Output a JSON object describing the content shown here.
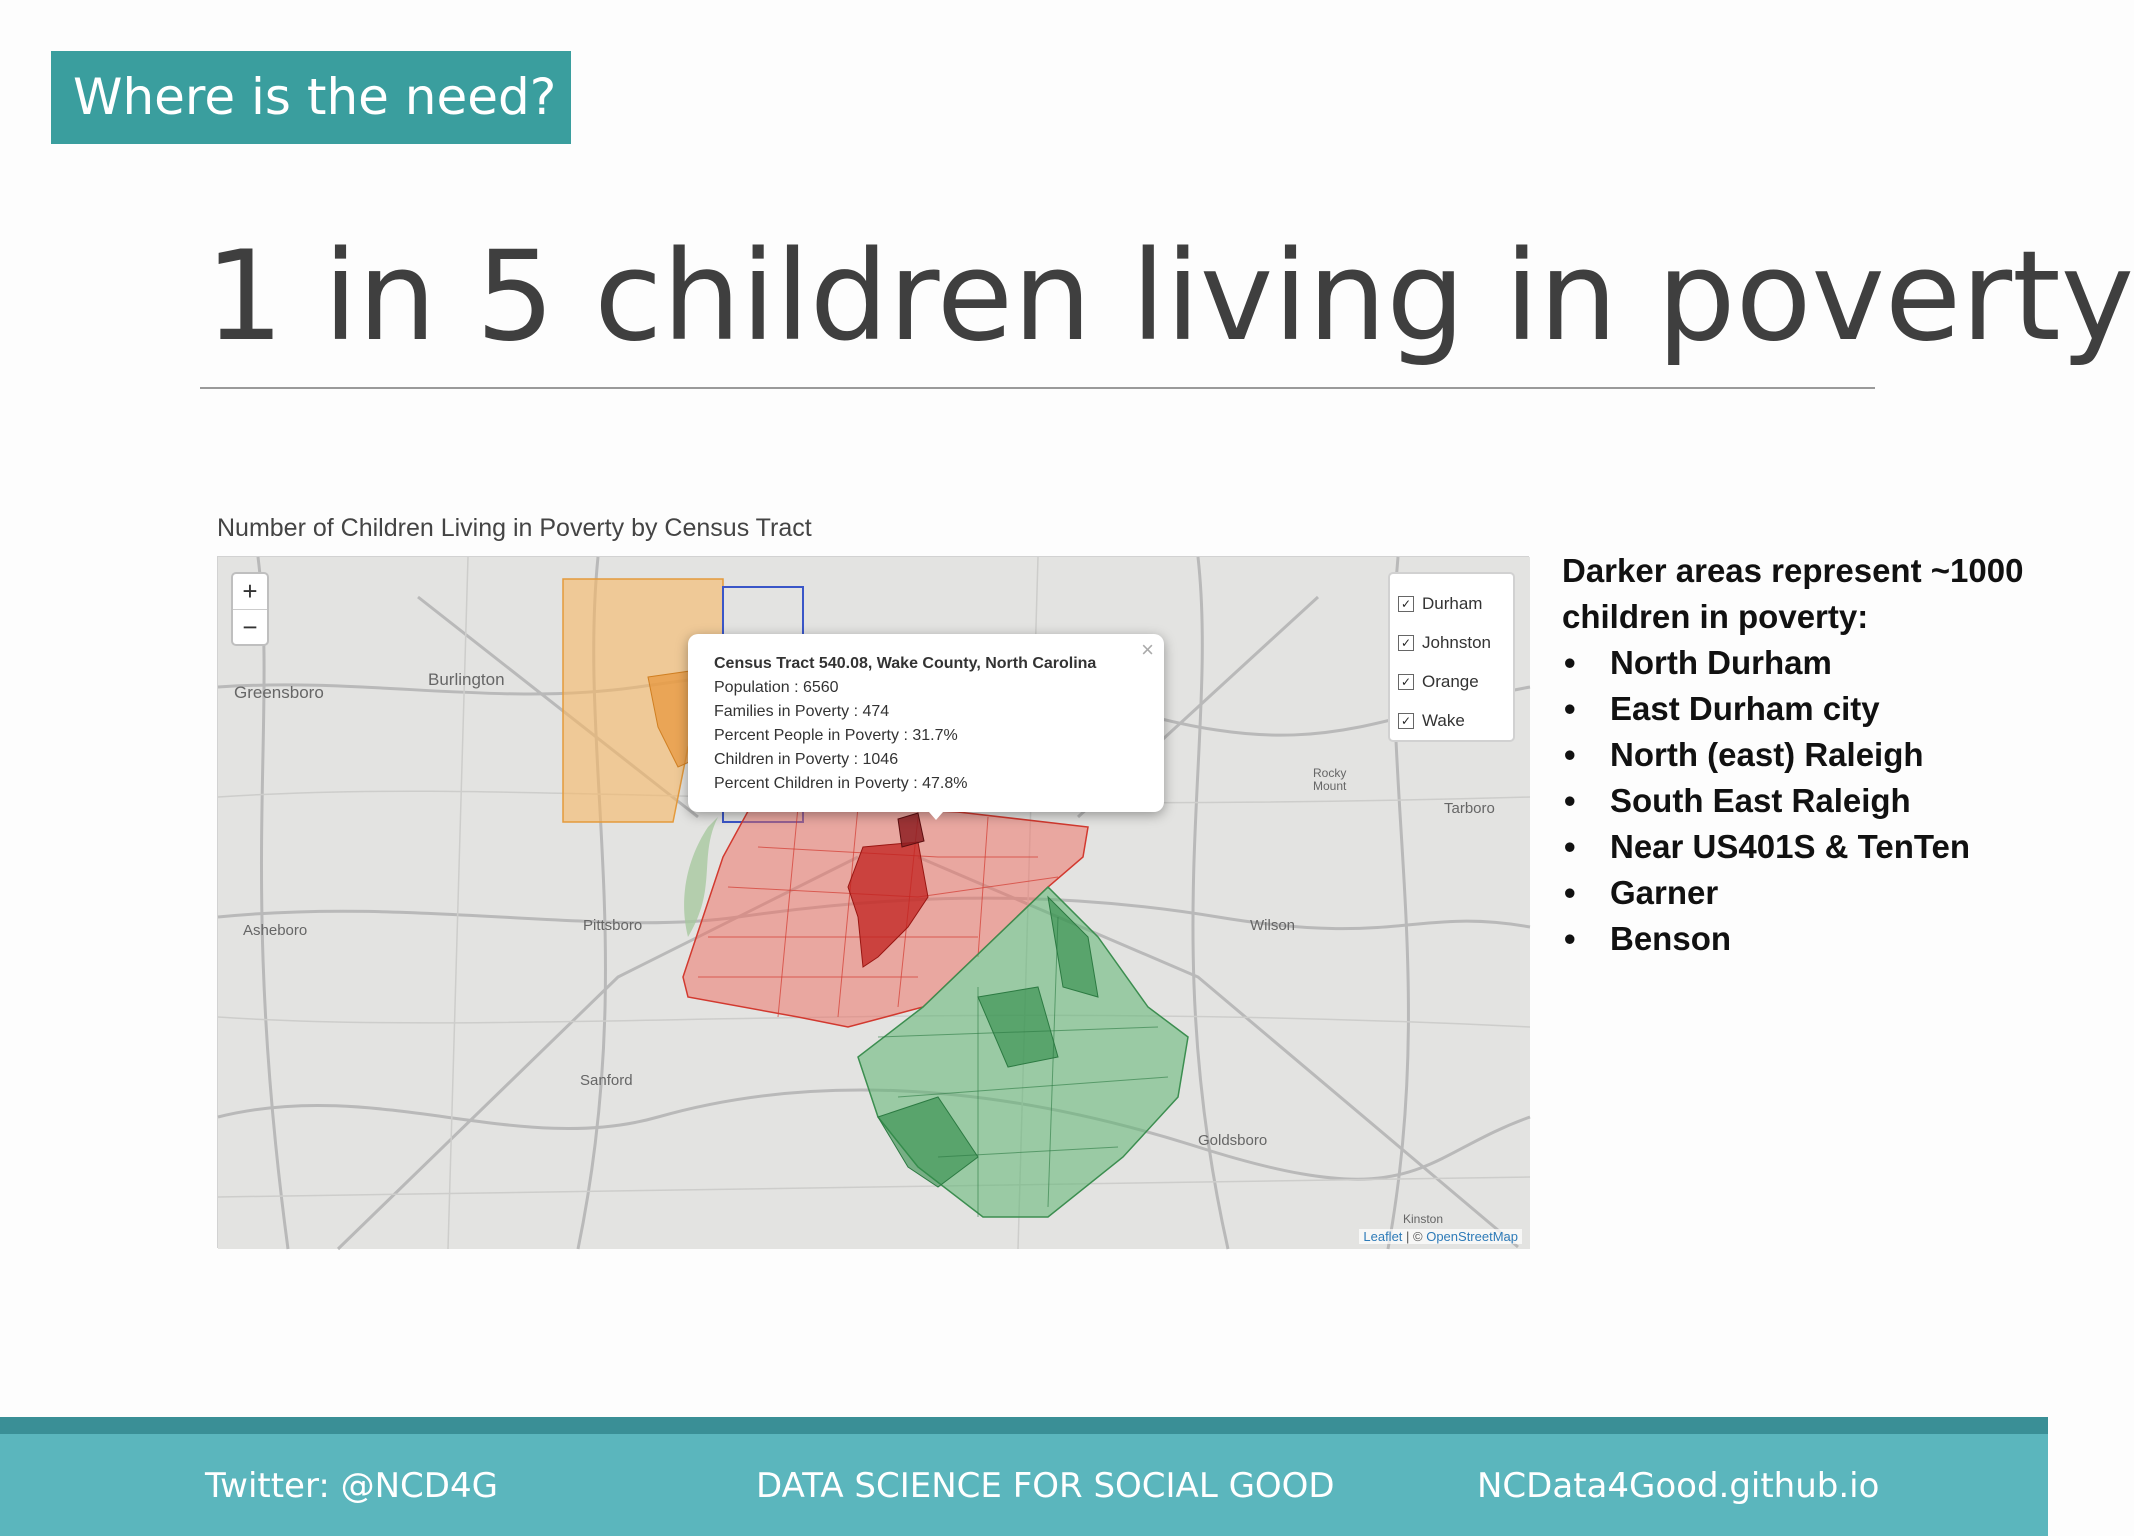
{
  "slide": {
    "section_tag": "Where is the need?",
    "title": "1 in 5 children living in poverty"
  },
  "map": {
    "caption": "Number of Children Living in Poverty by Census Tract",
    "zoom_in": "+",
    "zoom_out": "−",
    "layers": [
      {
        "label": "Durham",
        "checked": true,
        "color": "#f3a84a"
      },
      {
        "label": "Johnston",
        "checked": true,
        "color": "#3f9e59"
      },
      {
        "label": "Orange",
        "checked": true,
        "color": "#3a56c8"
      },
      {
        "label": "Wake",
        "checked": true,
        "color": "#e23b35"
      }
    ],
    "popup": {
      "close": "×",
      "title": "Census Tract 540.08, Wake County, North Carolina",
      "lines": [
        "Population : 6560",
        "Families in Poverty : 474",
        "Percent People in Poverty : 31.7%",
        "Children in Poverty : 1046",
        "Percent Children in Poverty : 47.8%"
      ]
    },
    "towns": {
      "greensboro": "Greensboro",
      "burlington": "Burlington",
      "asheboro": "Asheboro",
      "pittsboro": "Pittsboro",
      "sanford": "Sanford",
      "wilson": "Wilson",
      "tarboro": "Tarboro",
      "rocky_mount": "Rocky Mount",
      "goldsboro": "Goldsboro",
      "kinston": "Kinston"
    },
    "attribution_leaflet": "Leaflet",
    "attribution_sep": " | © ",
    "attribution_osm": "OpenStreetMap"
  },
  "notes": {
    "intro": "Darker areas represent ~1000 children in poverty:",
    "items": [
      "North Durham",
      "East Durham city",
      "North (east) Raleigh",
      "South East Raleigh",
      "Near US401S & TenTen",
      "Garner",
      "Benson"
    ]
  },
  "footer": {
    "twitter": "Twitter: @NCD4G",
    "center": "DATA SCIENCE FOR SOCIAL GOOD",
    "site": "NCData4Good.github.io"
  }
}
